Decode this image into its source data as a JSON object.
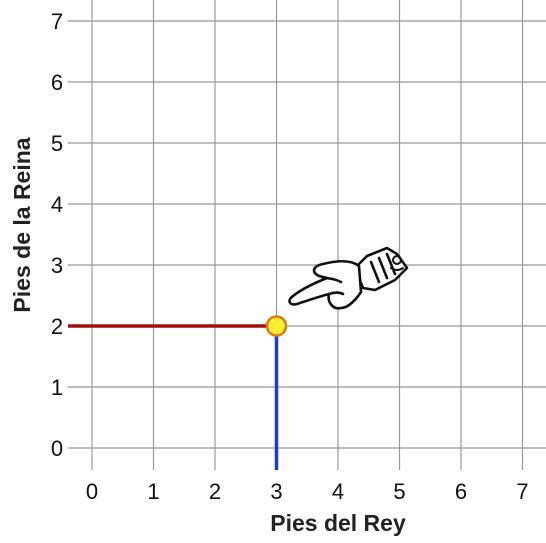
{
  "chart_data": {
    "type": "scatter",
    "xlabel": "Pies del Rey",
    "ylabel": "Pies de la Reina",
    "x_ticks": [
      "0",
      "1",
      "2",
      "3",
      "4",
      "5",
      "6",
      "7"
    ],
    "y_ticks": [
      "0",
      "1",
      "2",
      "3",
      "4",
      "5",
      "6",
      "7"
    ],
    "xlim": [
      0,
      7
    ],
    "ylim": [
      0,
      7
    ],
    "grid": true,
    "point": {
      "x": 3,
      "y": 2
    },
    "colors": {
      "grid": "#999999",
      "vertical_guide": "#1a3fbf",
      "horizontal_guide": "#a01010",
      "point_fill": "#ffee33",
      "point_stroke": "#e07a10"
    },
    "annotation_icon": "pointing-hand-icon"
  }
}
